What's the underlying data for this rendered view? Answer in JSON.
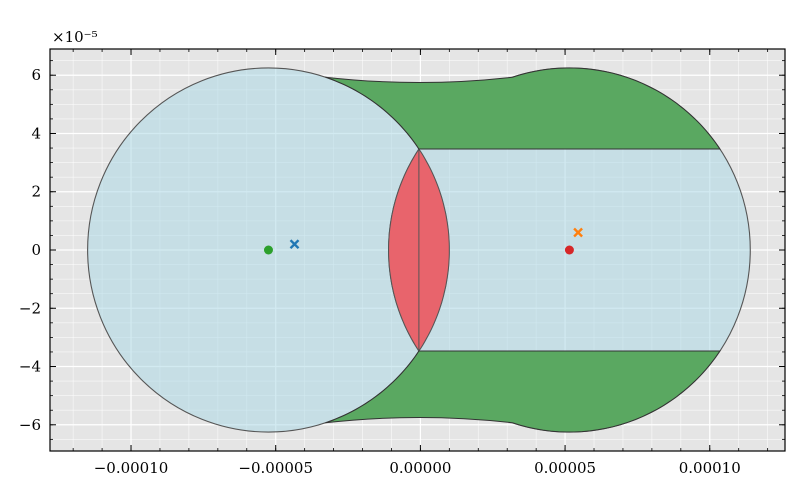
{
  "chart_data": {
    "type": "scatter",
    "title": "",
    "xlabel": "",
    "ylabel": "",
    "xlim": [
      -0.000128,
      0.000126
    ],
    "ylim": [
      -6.9,
      6.9
    ],
    "y_offset_text": "×10⁻⁵",
    "grid": true,
    "x_ticks": [
      {
        "value": -0.0001,
        "label": "−0.00010"
      },
      {
        "value": -5e-05,
        "label": "−0.00005"
      },
      {
        "value": 0,
        "label": "0.00000"
      },
      {
        "value": 5e-05,
        "label": "0.00005"
      },
      {
        "value": 0.0001,
        "label": "0.00010"
      }
    ],
    "y_ticks": [
      {
        "value": -6,
        "label": "−6"
      },
      {
        "value": -4,
        "label": "−4"
      },
      {
        "value": -2,
        "label": "−2"
      },
      {
        "value": 0,
        "label": "0"
      },
      {
        "value": 2,
        "label": "2"
      },
      {
        "value": 4,
        "label": "4"
      },
      {
        "value": 6,
        "label": "6"
      }
    ],
    "circles": [
      {
        "cx": -5.25e-05,
        "cy": 0,
        "r": 6.25e-05,
        "fill": "#add8e6"
      },
      {
        "cx": 5.15e-05,
        "cy": 0,
        "r": 6.25e-05,
        "fill": "#add8e6"
      }
    ],
    "regions": {
      "intersection_color": "#e8646c",
      "hull_gap_color": "#5aa861"
    },
    "markers": [
      {
        "x": -5.25e-05,
        "y": 0,
        "shape": "circle",
        "color": "#2ca02c"
      },
      {
        "x": -4.35e-05,
        "y": 0.2,
        "shape": "x",
        "color": "#1f77b4"
      },
      {
        "x": 5.15e-05,
        "y": 0,
        "shape": "circle",
        "color": "#d62728"
      },
      {
        "x": 5.45e-05,
        "y": 0.6,
        "shape": "x",
        "color": "#ff7f0e"
      }
    ]
  }
}
